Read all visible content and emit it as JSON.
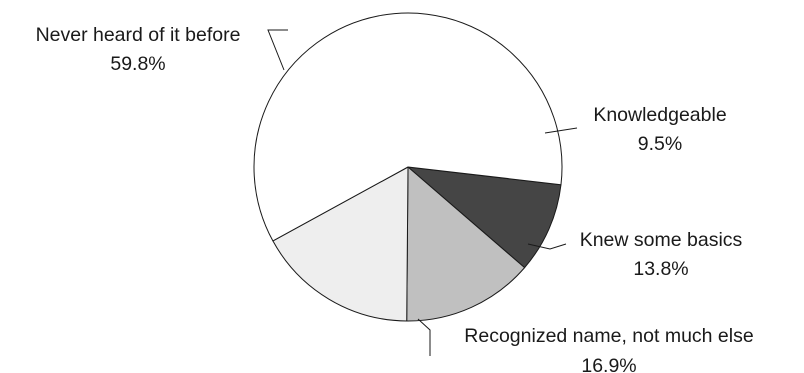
{
  "chart_data": {
    "type": "pie",
    "slices": [
      {
        "label": "Knowledgeable",
        "value": 9.5,
        "display": "9.5%",
        "color": "#454545"
      },
      {
        "label": "Knew some basics",
        "value": 13.8,
        "display": "13.8%",
        "color": "#c0c0c0"
      },
      {
        "label": "Recognized name, not much else",
        "value": 16.9,
        "display": "16.9%",
        "color": "#eeeeee"
      },
      {
        "label": "Never heard of it before",
        "value": 59.8,
        "display": "59.8%",
        "color": "#ffffff"
      }
    ],
    "stroke_color": "#1a1a1a",
    "text_color": "#1a1a1a",
    "background": "#ffffff"
  }
}
